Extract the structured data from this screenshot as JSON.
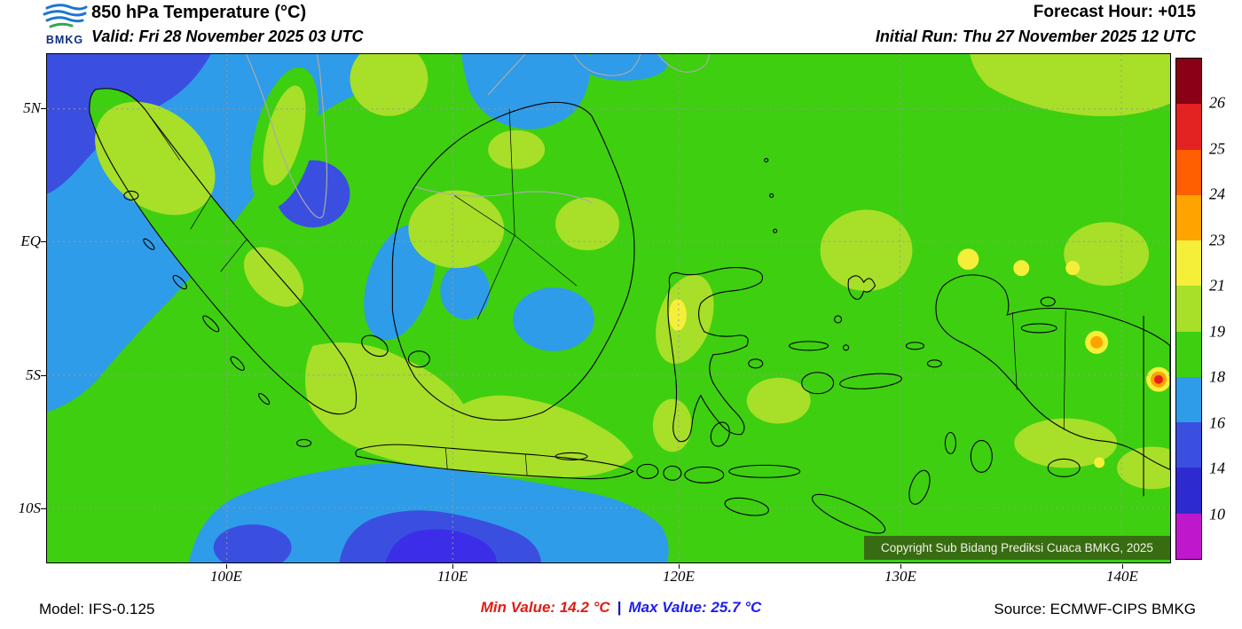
{
  "header": {
    "logo_text": "BMKG",
    "title": "850 hPa Temperature (°C)",
    "valid": "Valid: Fri 28 November 2025 03 UTC",
    "forecast_hour": "Forecast Hour: +015",
    "initial_run": "Initial Run: Thu 27 November 2025 12 UTC"
  },
  "map": {
    "y_axis_labels": [
      "5N",
      "EQ",
      "5S",
      "10S"
    ],
    "x_axis_labels": [
      "100E",
      "110E",
      "120E",
      "130E",
      "140E"
    ],
    "copyright": "Copyright Sub Bidang Prediksi Cuaca BMKG, 2025"
  },
  "colorbar": {
    "unit": "°C",
    "labels": [
      "26",
      "25",
      "24",
      "23",
      "21",
      "19",
      "18",
      "16",
      "14",
      "10"
    ],
    "segments": [
      "#8a0016",
      "#e32222",
      "#ff5f00",
      "#ffa300",
      "#f5ef3a",
      "#a8df28",
      "#3ecf10",
      "#2e9ce8",
      "#3a4fe0",
      "#2d2bd0",
      "#bf18cc"
    ]
  },
  "footer": {
    "model": "Model: IFS-0.125",
    "min_label": "Min Value:",
    "min_value": "14.2 °C",
    "separator": "|",
    "max_label": "Max Value:",
    "max_value": "25.7 °C",
    "source": "Source: ECMWF-CIPS BMKG"
  }
}
